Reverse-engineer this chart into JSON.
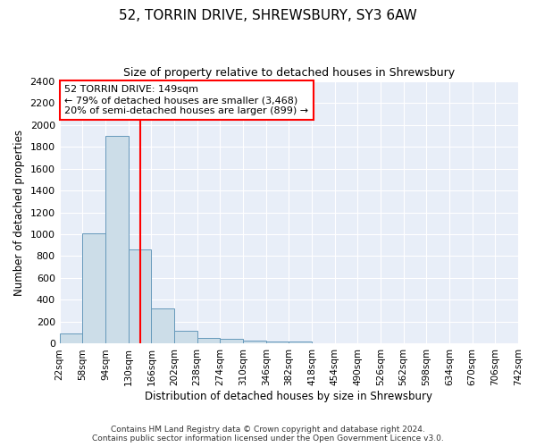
{
  "title_line1": "52, TORRIN DRIVE, SHREWSBURY, SY3 6AW",
  "title_line2": "Size of property relative to detached houses in Shrewsbury",
  "xlabel": "Distribution of detached houses by size in Shrewsbury",
  "ylabel": "Number of detached properties",
  "annotation_title": "52 TORRIN DRIVE: 149sqm",
  "annotation_line2": "← 79% of detached houses are smaller (3,468)",
  "annotation_line3": "20% of semi-detached houses are larger (899) →",
  "property_size": 149,
  "bin_edges": [
    22,
    58,
    94,
    130,
    166,
    202,
    238,
    274,
    310,
    346,
    382,
    418,
    454,
    490,
    526,
    562,
    598,
    634,
    670,
    706,
    742
  ],
  "bin_labels": [
    "22sqm",
    "58sqm",
    "94sqm",
    "130sqm",
    "166sqm",
    "202sqm",
    "238sqm",
    "274sqm",
    "310sqm",
    "346sqm",
    "382sqm",
    "418sqm",
    "454sqm",
    "490sqm",
    "526sqm",
    "562sqm",
    "598sqm",
    "634sqm",
    "670sqm",
    "706sqm",
    "742sqm"
  ],
  "bar_heights": [
    90,
    1010,
    1900,
    860,
    320,
    115,
    55,
    45,
    30,
    20,
    20,
    0,
    0,
    0,
    0,
    0,
    0,
    0,
    0,
    0
  ],
  "bar_color": "#ccdde8",
  "bar_edge_color": "#6699bb",
  "red_line_x": 149,
  "ylim": [
    0,
    2400
  ],
  "yticks": [
    0,
    200,
    400,
    600,
    800,
    1000,
    1200,
    1400,
    1600,
    1800,
    2000,
    2200,
    2400
  ],
  "background_color": "#e8eef8",
  "footer_line1": "Contains HM Land Registry data © Crown copyright and database right 2024.",
  "footer_line2": "Contains public sector information licensed under the Open Government Licence v3.0."
}
